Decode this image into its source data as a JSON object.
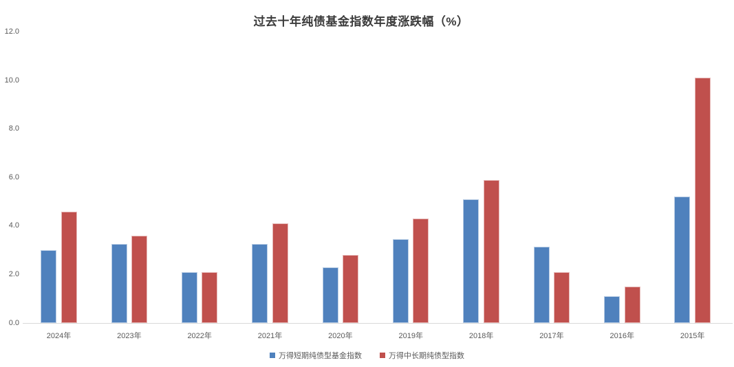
{
  "chart_data": {
    "type": "bar",
    "title": "过去十年纯债基金指数年度涨跌幅（%）",
    "categories": [
      "2024年",
      "2023年",
      "2022年",
      "2021年",
      "2020年",
      "2019年",
      "2018年",
      "2017年",
      "2016年",
      "2015年"
    ],
    "series": [
      {
        "name": "万得短期纯债型基金指数",
        "color": "#4F81BD",
        "border_color": "#B8CCE4",
        "values": [
          3.0,
          3.25,
          2.1,
          3.25,
          2.3,
          3.45,
          5.1,
          3.15,
          1.1,
          5.2
        ]
      },
      {
        "name": "万得中长期纯债型指数",
        "color": "#C0504D",
        "border_color": "#E6B8B7",
        "values": [
          4.6,
          3.6,
          2.1,
          4.1,
          2.8,
          4.3,
          5.9,
          2.1,
          1.5,
          10.1
        ]
      }
    ],
    "xlabel": "",
    "ylabel": "",
    "ylim": [
      0,
      12
    ],
    "yticks": [
      "0.0",
      "2.0",
      "4.0",
      "6.0",
      "8.0",
      "10.0",
      "12.0"
    ],
    "ytick_values": [
      0,
      2,
      4,
      6,
      8,
      10,
      12
    ],
    "grid": false,
    "legend_position": "bottom",
    "axis_line_color": "#d9d9d9",
    "text_color": "#595959"
  }
}
